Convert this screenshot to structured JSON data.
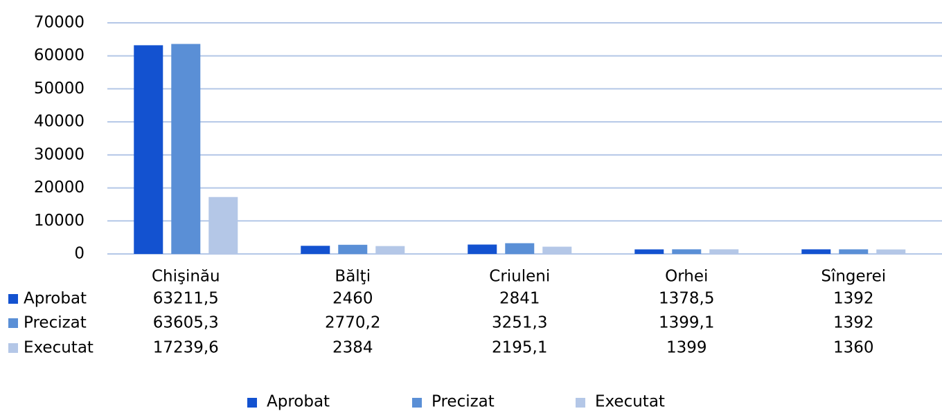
{
  "chart_data": {
    "type": "bar",
    "categories": [
      "Chişinău",
      "Bălţi",
      "Criuleni",
      "Orhei",
      "Sîngerei"
    ],
    "series": [
      {
        "name": "Aprobat",
        "color": "#1352d0",
        "values": [
          63211.5,
          2460,
          2841,
          1378.5,
          1392
        ],
        "value_labels": [
          "63211,5",
          "2460",
          "2841",
          "1378,5",
          "1392"
        ]
      },
      {
        "name": "Precizat",
        "color": "#5a8fd6",
        "values": [
          63605.3,
          2770.2,
          3251.3,
          1399.1,
          1392
        ],
        "value_labels": [
          "63605,3",
          "2770,2",
          "3251,3",
          "1399,1",
          "1392"
        ]
      },
      {
        "name": "Executat",
        "color": "#b4c7e7",
        "values": [
          17239.6,
          2384,
          2195.1,
          1399,
          1360
        ],
        "value_labels": [
          "17239,6",
          "2384",
          "2195,1",
          "1399",
          "1360"
        ]
      }
    ],
    "ylim": [
      0,
      70000
    ],
    "yticks": [
      0,
      10000,
      20000,
      30000,
      40000,
      50000,
      60000,
      70000
    ],
    "grid": true,
    "legend": "bottom"
  }
}
